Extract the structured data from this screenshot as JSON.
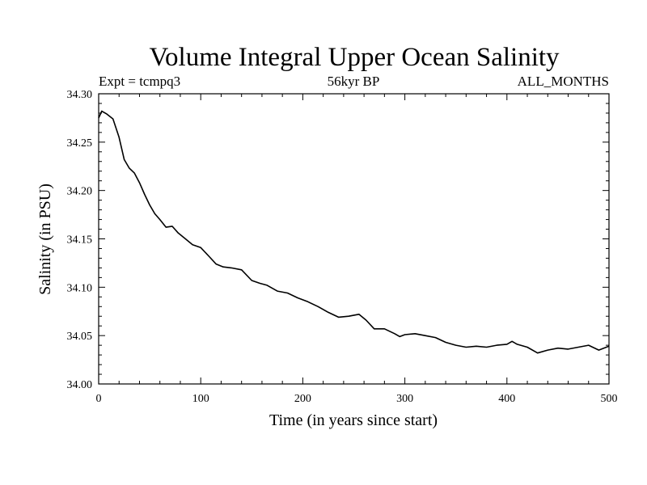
{
  "chart_data": {
    "type": "line",
    "title": "Volume Integral Upper Ocean Salinity",
    "subtitle_left": "Expt = tcmpq3",
    "subtitle_center": "56kyr BP",
    "subtitle_right": "ALL_MONTHS",
    "xlabel": "Time (in years since start)",
    "ylabel": "Salinity (in PSU)",
    "xlim": [
      0,
      500
    ],
    "ylim": [
      34.0,
      34.3
    ],
    "x_ticks": [
      "0",
      "100",
      "200",
      "300",
      "400",
      "500"
    ],
    "y_ticks": [
      "34.00",
      "34.05",
      "34.10",
      "34.15",
      "34.20",
      "34.25",
      "34.30"
    ],
    "grid": false,
    "series": [
      {
        "x": [
          0,
          3,
          8,
          14,
          20,
          25,
          30,
          35,
          40,
          45,
          50,
          55,
          60,
          66,
          72,
          78,
          85,
          92,
          100,
          108,
          115,
          122,
          130,
          140,
          150,
          158,
          165,
          175,
          185,
          195,
          205,
          215,
          225,
          235,
          245,
          255,
          262,
          270,
          280,
          290,
          295,
          300,
          310,
          320,
          330,
          340,
          350,
          360,
          370,
          380,
          390,
          400,
          405,
          410,
          420,
          430,
          440,
          450,
          460,
          470,
          480,
          490,
          500
        ],
        "y": [
          34.275,
          34.282,
          34.279,
          34.274,
          34.255,
          34.232,
          34.223,
          34.218,
          34.208,
          34.196,
          34.185,
          34.176,
          34.17,
          34.162,
          34.163,
          34.156,
          34.15,
          34.144,
          34.141,
          34.132,
          34.124,
          34.121,
          34.12,
          34.118,
          34.107,
          34.104,
          34.102,
          34.096,
          34.094,
          34.089,
          34.085,
          34.08,
          34.074,
          34.069,
          34.07,
          34.072,
          34.066,
          34.057,
          34.057,
          34.052,
          34.049,
          34.051,
          34.052,
          34.05,
          34.048,
          34.043,
          34.04,
          34.038,
          34.039,
          34.038,
          34.04,
          34.041,
          34.044,
          34.041,
          34.038,
          34.032,
          34.035,
          34.037,
          34.036,
          34.038,
          34.04,
          34.035,
          34.039
        ]
      }
    ]
  }
}
